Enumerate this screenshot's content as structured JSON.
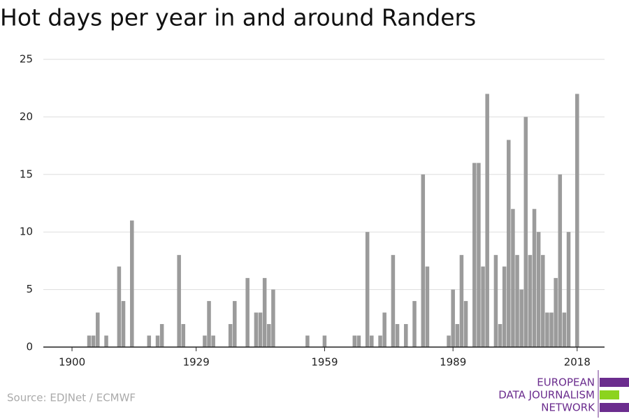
{
  "chart_data": {
    "type": "bar",
    "title": "Hot days per year in and around Randers",
    "source": "Source: EDJNet / ECMWF",
    "logo": [
      "EUROPEAN",
      "DATA JOURNALISM",
      "NETWORK"
    ],
    "color": "#9b9b9b",
    "x": [
      1900,
      1901,
      1902,
      1903,
      1904,
      1905,
      1906,
      1907,
      1908,
      1909,
      1910,
      1911,
      1912,
      1913,
      1914,
      1915,
      1916,
      1917,
      1918,
      1919,
      1920,
      1921,
      1922,
      1923,
      1924,
      1925,
      1926,
      1927,
      1928,
      1929,
      1930,
      1931,
      1932,
      1933,
      1934,
      1935,
      1936,
      1937,
      1938,
      1939,
      1940,
      1941,
      1942,
      1943,
      1944,
      1945,
      1946,
      1947,
      1948,
      1949,
      1950,
      1951,
      1952,
      1953,
      1954,
      1955,
      1956,
      1957,
      1958,
      1959,
      1960,
      1961,
      1962,
      1963,
      1964,
      1965,
      1966,
      1967,
      1968,
      1969,
      1970,
      1971,
      1972,
      1973,
      1974,
      1975,
      1976,
      1977,
      1978,
      1979,
      1980,
      1981,
      1982,
      1983,
      1984,
      1985,
      1986,
      1987,
      1988,
      1989,
      1990,
      1991,
      1992,
      1993,
      1994,
      1995,
      1996,
      1997,
      1998,
      1999,
      2000,
      2001,
      2002,
      2003,
      2004,
      2005,
      2006,
      2007,
      2008,
      2009,
      2010,
      2011,
      2012,
      2013,
      2014,
      2015,
      2016,
      2017,
      2018
    ],
    "values": [
      0,
      0,
      0,
      0,
      1,
      1,
      3,
      0,
      1,
      0,
      0,
      7,
      4,
      0,
      11,
      0,
      0,
      0,
      1,
      0,
      1,
      2,
      0,
      0,
      0,
      8,
      2,
      0,
      0,
      0,
      0,
      1,
      4,
      1,
      0,
      0,
      0,
      2,
      4,
      0,
      0,
      6,
      0,
      3,
      3,
      6,
      2,
      5,
      0,
      0,
      0,
      0,
      0,
      0,
      0,
      1,
      0,
      0,
      0,
      1,
      0,
      0,
      0,
      0,
      0,
      0,
      1,
      1,
      0,
      10,
      1,
      0,
      1,
      3,
      0,
      8,
      2,
      0,
      2,
      0,
      4,
      0,
      15,
      7,
      0,
      0,
      0,
      0,
      1,
      5,
      2,
      8,
      4,
      0,
      16,
      16,
      7,
      22,
      0,
      8,
      2,
      7,
      18,
      12,
      8,
      5,
      20,
      8,
      12,
      10,
      8,
      3,
      3,
      6,
      15,
      3,
      10,
      0,
      22
    ],
    "xlim": [
      1893.3,
      2024.4
    ],
    "xticks": [
      1900,
      1929,
      1959,
      1989,
      2018
    ],
    "ylim": [
      0,
      25
    ],
    "yticks": [
      0,
      5,
      10,
      15,
      20,
      25
    ],
    "grid": true
  }
}
